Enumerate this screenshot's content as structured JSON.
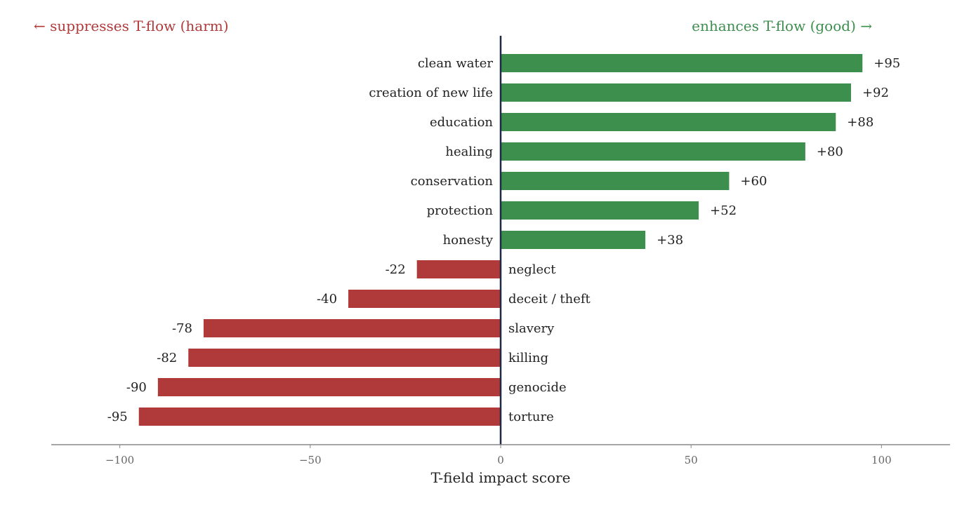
{
  "chart_data": {
    "type": "bar",
    "orientation": "horizontal",
    "categories": [
      "clean water",
      "creation of new life",
      "education",
      "healing",
      "conservation",
      "protection",
      "honesty",
      "neglect",
      "deceit / theft",
      "slavery",
      "killing",
      "genocide",
      "torture"
    ],
    "values": [
      95,
      92,
      88,
      80,
      60,
      52,
      38,
      -22,
      -40,
      -78,
      -82,
      -90,
      -95
    ],
    "value_labels": [
      "+95",
      "+92",
      "+88",
      "+80",
      "+60",
      "+52",
      "+38",
      "-22",
      "-40",
      "-78",
      "-82",
      "-90",
      "-95"
    ],
    "xlabel": "T-field impact score",
    "ylabel": "",
    "xlim": [
      -118,
      118
    ],
    "xticks": [
      -100,
      -50,
      0,
      50,
      100
    ],
    "xtick_labels": [
      "−100",
      "−50",
      "0",
      "50",
      "100"
    ],
    "grid": false,
    "annotations": {
      "negative": "← suppresses T-flow  (harm)",
      "positive": "enhances T-flow  (good) →"
    },
    "colors": {
      "positive": "#3d8f4e",
      "negative": "#b03a3a",
      "zero_line": "#1f2a44",
      "axis": "#888888"
    }
  }
}
